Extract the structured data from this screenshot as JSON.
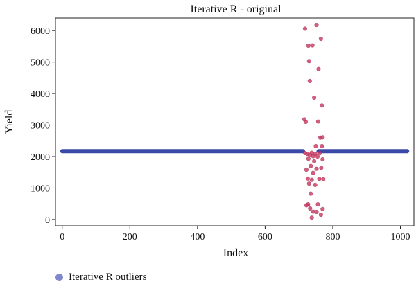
{
  "chart_data": {
    "type": "scatter",
    "title": "Iterative R - original",
    "xlabel": "Index",
    "ylabel": "Yield",
    "xlim": [
      -20,
      1040
    ],
    "ylim": [
      -200,
      6400
    ],
    "xticks": [
      0,
      200,
      400,
      600,
      800,
      1000
    ],
    "yticks": [
      0,
      1000,
      2000,
      3000,
      4000,
      5000,
      6000
    ],
    "legend_position": "bottom-left",
    "series": [
      {
        "name": "Iterative R outliers",
        "color": "#3b4aa8",
        "legend_color": "#7f88cc",
        "style": "dense-band",
        "x_start": 0,
        "x_end": 1020,
        "gap": [
          712,
          758
        ],
        "y": 2170
      },
      {
        "color": "#c8365f",
        "points": [
          [
            718,
            6060
          ],
          [
            752,
            6180
          ],
          [
            728,
            5520
          ],
          [
            740,
            5530
          ],
          [
            765,
            5740
          ],
          [
            730,
            5030
          ],
          [
            758,
            4780
          ],
          [
            732,
            4400
          ],
          [
            745,
            3870
          ],
          [
            768,
            3620
          ],
          [
            716,
            3180
          ],
          [
            720,
            3100
          ],
          [
            757,
            3110
          ],
          [
            763,
            2600
          ],
          [
            770,
            2610
          ],
          [
            750,
            2330
          ],
          [
            768,
            2330
          ],
          [
            718,
            2110
          ],
          [
            725,
            2080
          ],
          [
            732,
            2050
          ],
          [
            738,
            2120
          ],
          [
            742,
            2010
          ],
          [
            748,
            2090
          ],
          [
            755,
            2000
          ],
          [
            762,
            2110
          ],
          [
            728,
            1930
          ],
          [
            745,
            1850
          ],
          [
            770,
            1910
          ],
          [
            735,
            1700
          ],
          [
            722,
            1580
          ],
          [
            752,
            1610
          ],
          [
            766,
            1640
          ],
          [
            742,
            1480
          ],
          [
            726,
            1300
          ],
          [
            738,
            1260
          ],
          [
            760,
            1290
          ],
          [
            772,
            1280
          ],
          [
            730,
            1140
          ],
          [
            748,
            1100
          ],
          [
            735,
            820
          ],
          [
            727,
            480
          ],
          [
            722,
            450
          ],
          [
            756,
            480
          ],
          [
            733,
            350
          ],
          [
            742,
            250
          ],
          [
            752,
            240
          ],
          [
            765,
            150
          ],
          [
            738,
            60
          ],
          [
            770,
            330
          ]
        ]
      }
    ]
  }
}
